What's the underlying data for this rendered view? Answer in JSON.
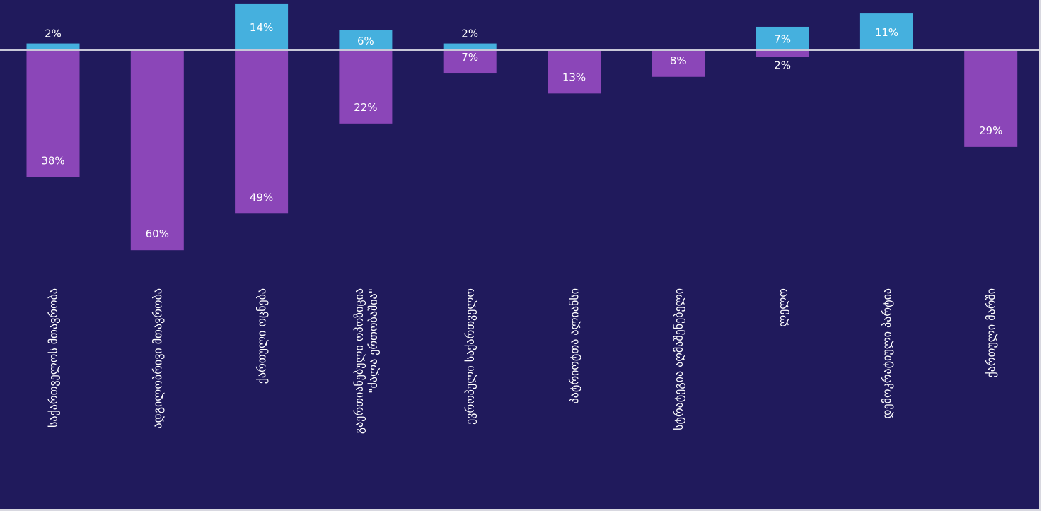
{
  "chart_data": {
    "type": "bar",
    "stacked": "diverging",
    "categories": [
      "საქართველოს მთავრობა",
      "ადგილობრივი მთავრობა",
      "ქართული ოცნება",
      "გაერთიანებული ოპოზიცია \"ძალა ერთობაშია\"",
      "ევროპული საქართველო",
      "პატრიოტთა ალიანსი",
      "სტრატეგია აღმაშენებელი",
      "ლელო",
      "დემოკრატიული პარტია",
      "ქართული მარში"
    ],
    "series": [
      {
        "values": [
          2,
          0,
          14,
          6,
          2,
          0,
          0,
          7,
          11,
          0
        ],
        "labels": [
          "2%",
          "",
          "14%",
          "6%",
          "2%",
          "",
          "",
          "7%",
          "11%",
          ""
        ],
        "color": "#45b0de"
      },
      {
        "values": [
          -38,
          -60,
          -49,
          -22,
          -7,
          -13,
          -8,
          -2,
          0,
          -29
        ],
        "labels": [
          "38%",
          "60%",
          "49%",
          "22%",
          "7%",
          "13%",
          "8%",
          "2%",
          "",
          "29%"
        ],
        "color": "#8b46b8"
      }
    ],
    "ylim": [
      -60,
      14
    ],
    "background": "#201a5c",
    "baseline_color": "#c8c8d8",
    "grid": false,
    "legend": "none"
  }
}
